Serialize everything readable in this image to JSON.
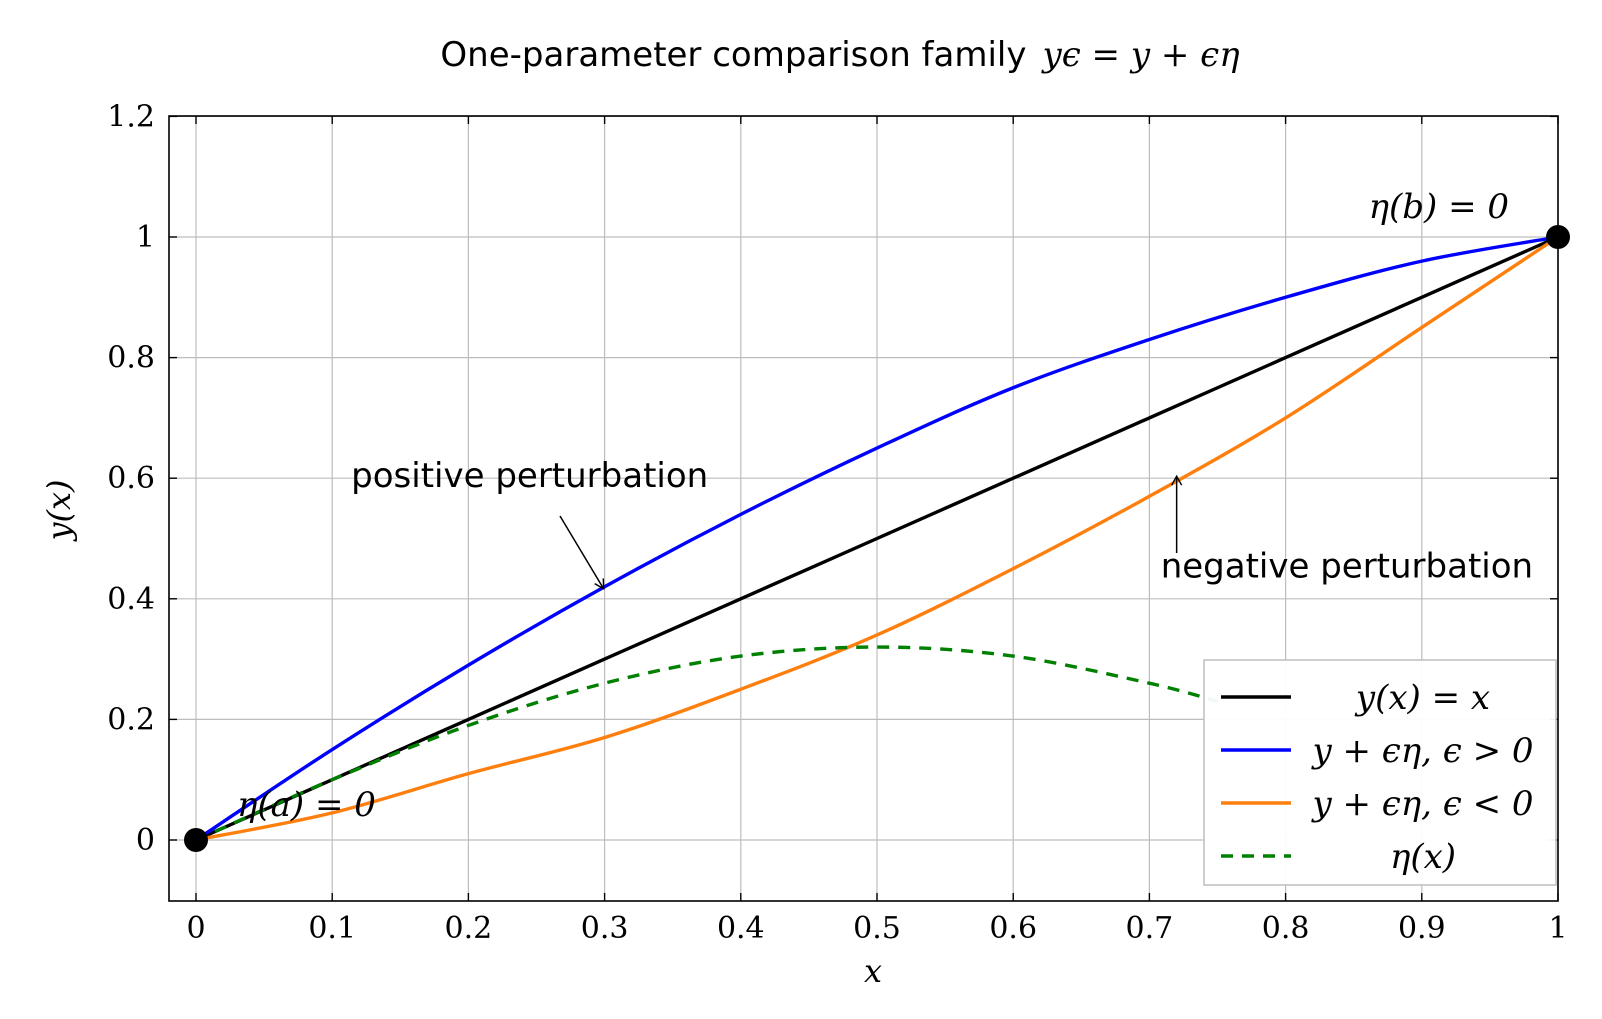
{
  "chart_data": {
    "type": "line",
    "title_prefix": "One-parameter comparison family",
    "title_math": "yϵ = y + ϵη",
    "xlabel": "x",
    "ylabel": "y(x)",
    "xlim": [
      -0.02,
      1.0
    ],
    "ylim": [
      -0.1,
      1.2
    ],
    "xticks": [
      "0",
      "0.1",
      "0.2",
      "0.3",
      "0.4",
      "0.5",
      "0.6",
      "0.7",
      "0.8",
      "0.9",
      "1"
    ],
    "yticks": [
      "0",
      "0.2",
      "0.4",
      "0.6",
      "0.8",
      "1",
      "1.2"
    ],
    "grid": true,
    "legend_position": "bottom-right",
    "series": [
      {
        "name": "y(x) = x",
        "color": "#000000",
        "dash": "solid",
        "x": [
          0,
          0.1,
          0.2,
          0.3,
          0.4,
          0.5,
          0.6,
          0.7,
          0.8,
          0.9,
          1.0
        ],
        "y": [
          0,
          0.1,
          0.2,
          0.3,
          0.4,
          0.5,
          0.6,
          0.7,
          0.8,
          0.9,
          1.0
        ]
      },
      {
        "name": "y + ϵη, ϵ > 0",
        "color": "#0000ff",
        "dash": "solid",
        "x": [
          0,
          0.1,
          0.2,
          0.3,
          0.4,
          0.5,
          0.6,
          0.7,
          0.8,
          0.9,
          1.0
        ],
        "y": [
          0,
          0.15,
          0.29,
          0.42,
          0.54,
          0.65,
          0.75,
          0.83,
          0.9,
          0.96,
          1.0
        ]
      },
      {
        "name": "y + ϵη, ϵ < 0",
        "color": "#ff7f0e",
        "dash": "solid",
        "x": [
          0,
          0.1,
          0.2,
          0.3,
          0.4,
          0.5,
          0.6,
          0.7,
          0.8,
          0.9,
          1.0
        ],
        "y": [
          0,
          0.045,
          0.11,
          0.17,
          0.25,
          0.34,
          0.45,
          0.57,
          0.7,
          0.85,
          1.0
        ]
      },
      {
        "name": "η(x)",
        "color": "#008000",
        "dash": "dashed",
        "x": [
          0,
          0.1,
          0.2,
          0.3,
          0.4,
          0.5,
          0.6,
          0.7,
          0.75
        ],
        "y": [
          0,
          0.1,
          0.19,
          0.26,
          0.305,
          0.32,
          0.305,
          0.26,
          0.23
        ]
      }
    ],
    "endpoints": [
      {
        "x": 0,
        "y": 0,
        "label": "η(a) = 0"
      },
      {
        "x": 1,
        "y": 1,
        "label": "η(b) = 0"
      }
    ],
    "annotations": [
      {
        "text": "positive perturbation",
        "text_x": 0.245,
        "text_y": 0.605,
        "target_x": 0.3,
        "target_y": 0.42
      },
      {
        "text": "negative perturbation",
        "text_x": 0.845,
        "text_y": 0.455,
        "target_x": 0.72,
        "target_y": 0.6
      }
    ]
  }
}
